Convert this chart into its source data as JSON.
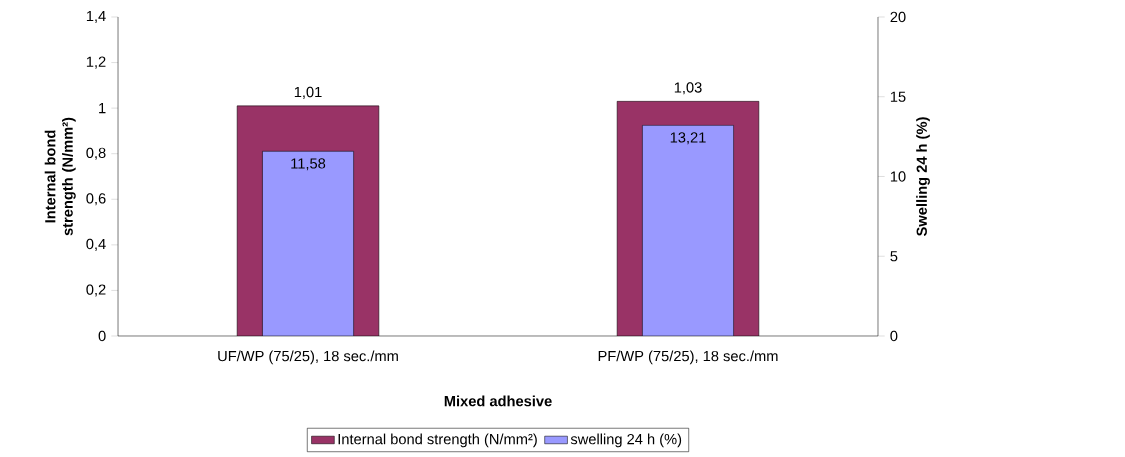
{
  "chart_data": {
    "type": "bar",
    "xlabel": "Mixed adhesive",
    "ylabel": "Internal bond strength (N/mm²)",
    "y2label": "Swelling 24 h (%)",
    "categories": [
      "UF/WP (75/25), 18 sec./mm",
      "PF/WP (75/25), 18 sec./mm"
    ],
    "series": [
      {
        "name": "Internal bond strength (N/mm²)",
        "color": "#993366",
        "values": [
          1.01,
          1.03
        ],
        "value_labels": [
          "1,01",
          "1,03"
        ]
      },
      {
        "name": "swelling 24 h (%)",
        "color": "#9999ff",
        "axis": "y2",
        "values": [
          11.58,
          13.21
        ],
        "value_labels": [
          "11,58",
          "13,21"
        ]
      }
    ],
    "ylim": [
      0,
      1.4
    ],
    "yticks": [
      0,
      {
        "value": 0.2,
        "label": "0,2"
      },
      {
        "value": 0.4,
        "label": "0,4"
      },
      {
        "value": 0.6,
        "label": "0,6"
      },
      {
        "value": 0.8,
        "label": "0,8"
      },
      1,
      {
        "value": 1.2,
        "label": "1,2"
      },
      {
        "value": 1.4,
        "label": "1,4"
      }
    ],
    "y2lim": [
      0,
      20
    ],
    "y2ticks": [
      0,
      5,
      10,
      15,
      20
    ],
    "legend": "bottom"
  }
}
